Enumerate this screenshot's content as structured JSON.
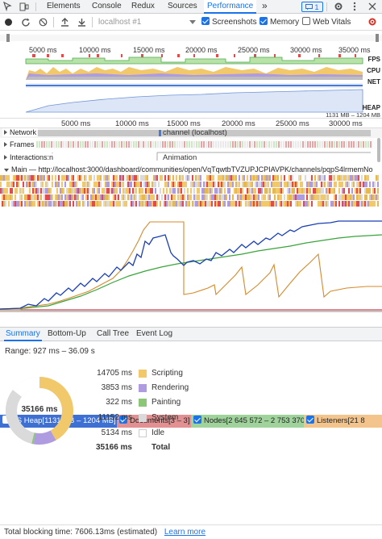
{
  "tabs": [
    "Elements",
    "Console",
    "Redux",
    "Sources",
    "Performance"
  ],
  "more_tabs": "»",
  "messages_badge": "1",
  "toolbar": {
    "target": "localhost #1",
    "screenshots": "Screenshots",
    "memory": "Memory",
    "web_vitals": "Web Vitals",
    "screenshots_checked": true,
    "memory_checked": true,
    "web_vitals_checked": false
  },
  "overview": {
    "ticks": [
      "5000 ms",
      "10000 ms",
      "15000 ms",
      "20000 ms",
      "25000 ms",
      "30000 ms",
      "35000 ms"
    ],
    "fps_label": "FPS",
    "cpu_label": "CPU",
    "net_label": "NET",
    "heap_label": "HEAP",
    "heap_range": "1131 MB – 1204 MB"
  },
  "main_ruler": {
    "ticks": [
      "5000 ms",
      "10000 ms",
      "15000 ms",
      "20000 ms",
      "25000 ms",
      "30000 ms",
      "35000 ms"
    ]
  },
  "tracks": {
    "network": "Network",
    "network_item": "channel (localhost)",
    "frames": "Frames",
    "interactions": "Interactions",
    "interactions_suffix": ":n",
    "animation": "Animation",
    "main": "Main — http://localhost:3000/dashboard/communities/open/VqTqwtbTVZUPJCPIAVPK/channels/pqpS4lrmemNo"
  },
  "memory_legend": {
    "js_heap": "JS Heap[1131 MB – 1204 MB]",
    "documents": "Documents[3 – 3]",
    "nodes": "Nodes[2 645 572 – 2 753 370]",
    "listeners": "Listeners[21 8"
  },
  "bottom_tabs": [
    "Summary",
    "Bottom-Up",
    "Call Tree",
    "Event Log"
  ],
  "summary": {
    "range": "Range: 927 ms – 36.09 s",
    "total_center": "35166 ms",
    "rows": [
      {
        "value": "14705 ms",
        "label": "Scripting",
        "color": "#f1c96b"
      },
      {
        "value": "3853 ms",
        "label": "Rendering",
        "color": "#af9bdf"
      },
      {
        "value": "322 ms",
        "label": "Painting",
        "color": "#8cc677"
      },
      {
        "value": "11152 ms",
        "label": "System",
        "color": "#dadada"
      },
      {
        "value": "5134 ms",
        "label": "Idle",
        "color": "#ffffff"
      },
      {
        "value": "35166 ms",
        "label": "Total",
        "color": ""
      }
    ],
    "breakdown_ms": {
      "scripting": 14705,
      "rendering": 3853,
      "painting": 322,
      "system": 11152,
      "idle": 5134
    }
  },
  "footer": {
    "text": "Total blocking time: 7606.13ms (estimated)",
    "link": "Learn more"
  },
  "colors": {
    "accent": "#1a73e8",
    "scripting": "#f1c96b",
    "rendering": "#af9bdf",
    "painting": "#8cc677",
    "system": "#dadada",
    "js_heap_line": "#1a3fb4",
    "documents_line": "#c9444a",
    "nodes_line": "#3aa33a",
    "listeners_line": "#d58a2b"
  }
}
